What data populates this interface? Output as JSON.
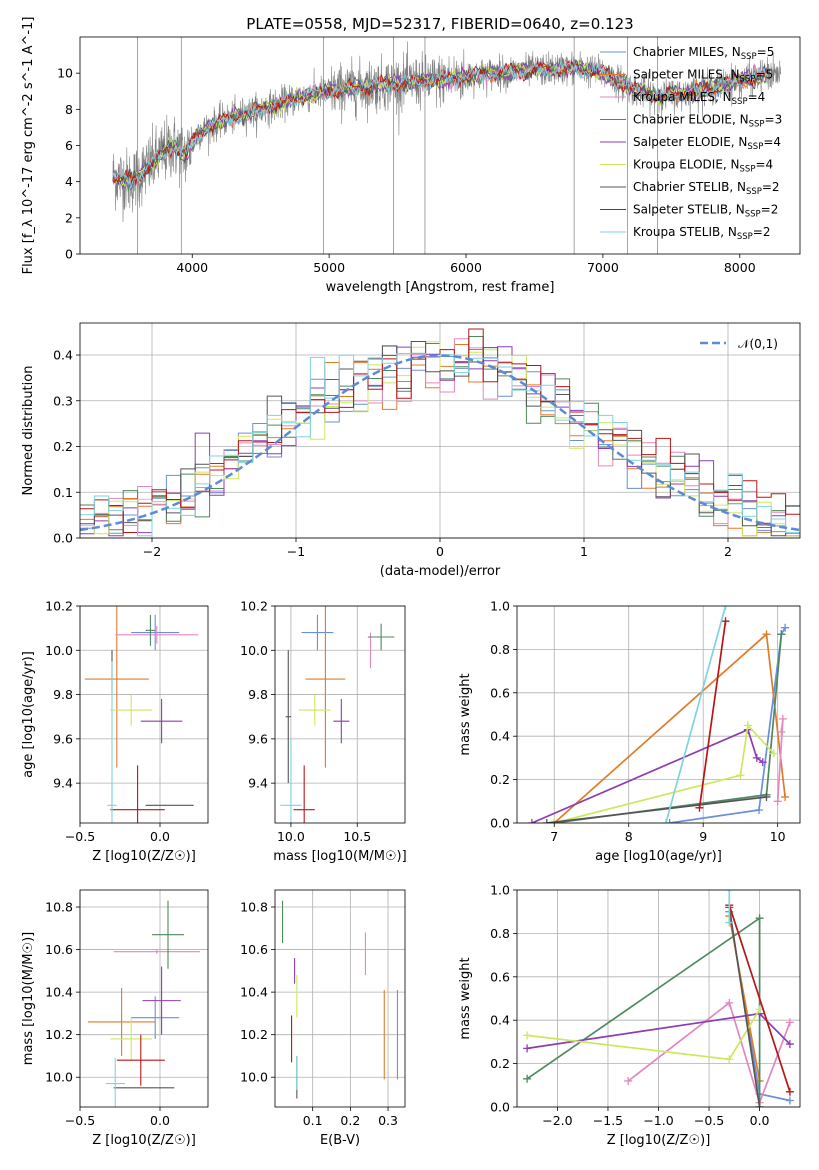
{
  "title": "PLATE=0558, MJD=52317, FIBERID=0640, z=0.123",
  "colors": {
    "chabrier_miles": "#6a8fdc",
    "salpeter_miles": "#e07b2a",
    "kroupa_miles": "#e487c0",
    "chabrier_elodie": "#4d8a5e",
    "salpeter_elodie": "#8e3cb3",
    "kroupa_elodie": "#cde85b",
    "chabrier_stelib": "#555555",
    "salpeter_stelib": "#b81616",
    "kroupa_stelib": "#7fd3e0",
    "observed": "#808080",
    "gaussian": "#5b8bd8"
  },
  "chart_data": [
    {
      "type": "line",
      "name": "spectrum",
      "xlabel": "wavelength [Angstrom, rest frame]",
      "ylabel": "Flux [f_λ 10^-17 erg cm^-2 s^-1 A^-1]",
      "xlim": [
        3180,
        8440
      ],
      "ylim": [
        0,
        12
      ],
      "xticks": [
        4000,
        5000,
        6000,
        7000,
        8000
      ],
      "yticks": [
        0,
        2,
        4,
        6,
        8,
        10
      ],
      "grid": false,
      "legend_position": "top-right",
      "legend": [
        {
          "key": "chabrier_miles",
          "label": "Chabrier MILES, N",
          "sub": "SSP",
          "suffix": "=5"
        },
        {
          "key": "salpeter_miles",
          "label": "Salpeter MILES, N",
          "sub": "SSP",
          "suffix": "=5"
        },
        {
          "key": "kroupa_miles",
          "label": "Kroupa MILES, N",
          "sub": "SSP",
          "suffix": "=4"
        },
        {
          "key": "chabrier_elodie",
          "label": "Chabrier ELODIE, N",
          "sub": "SSP",
          "suffix": "=3"
        },
        {
          "key": "salpeter_elodie",
          "label": "Salpeter ELODIE, N",
          "sub": "SSP",
          "suffix": "=4"
        },
        {
          "key": "kroupa_elodie",
          "label": "Kroupa ELODIE, N",
          "sub": "SSP",
          "suffix": "=4"
        },
        {
          "key": "chabrier_stelib",
          "label": "Chabrier STELIB, N",
          "sub": "SSP",
          "suffix": "=2"
        },
        {
          "key": "salpeter_stelib",
          "label": "Salpeter STELIB, N",
          "sub": "SSP",
          "suffix": "=2"
        },
        {
          "key": "kroupa_stelib",
          "label": "Kroupa STELIB, N",
          "sub": "SSP",
          "suffix": "=2"
        }
      ],
      "continuum": {
        "x": [
          3420,
          3550,
          3650,
          3750,
          3850,
          3950,
          4050,
          4200,
          4400,
          4600,
          4800,
          5000,
          5200,
          5400,
          5600,
          5800,
          6000,
          6200,
          6400,
          6600,
          6800,
          7000,
          7200,
          7400,
          7600,
          7800,
          8000,
          8200
        ],
        "y": [
          4.3,
          4.0,
          4.6,
          5.3,
          6.0,
          5.5,
          6.7,
          7.3,
          7.8,
          8.2,
          8.7,
          9.0,
          9.2,
          9.4,
          9.5,
          9.6,
          9.8,
          10.0,
          10.1,
          10.2,
          10.3,
          10.0,
          9.2,
          8.7,
          8.9,
          9.2,
          9.6,
          9.9
        ]
      },
      "observed_range": [
        3420,
        8300
      ]
    },
    {
      "type": "bar",
      "name": "residual-histogram",
      "xlabel": "(data-model)/error",
      "ylabel": "Normed distribution",
      "xlim": [
        -2.5,
        2.5
      ],
      "ylim": [
        0,
        0.47
      ],
      "xticks": [
        -2,
        -1,
        0,
        1,
        2
      ],
      "yticks": [
        0.0,
        0.1,
        0.2,
        0.3,
        0.4
      ],
      "grid": true,
      "legend_position": "top-right",
      "reference_label": "𝒩(0,1)",
      "bin_width": 0.1,
      "reference_curve": "normal(0,1)"
    },
    {
      "type": "scatter",
      "name": "age-vs-Z",
      "xlabel": "Z [log10(Z/Z☉)]",
      "ylabel": "age [log10(age/yr)]",
      "xlim": [
        -0.5,
        0.3
      ],
      "ylim": [
        9.22,
        10.2
      ],
      "xticks": [
        -0.5,
        0.0
      ],
      "yticks": [
        9.4,
        9.6,
        9.8,
        10.0,
        10.2
      ],
      "grid": true,
      "points": [
        {
          "key": "chabrier_miles",
          "x": -0.03,
          "y": 10.08,
          "xerr": 0.15,
          "yerr": 0.08
        },
        {
          "key": "salpeter_miles",
          "x": -0.27,
          "y": 9.87,
          "xerr": 0.2,
          "yerr": 0.4
        },
        {
          "key": "kroupa_miles",
          "x": -0.02,
          "y": 10.07,
          "xerr": 0.26,
          "yerr": 0.04
        },
        {
          "key": "chabrier_elodie",
          "x": -0.06,
          "y": 10.09,
          "xerr": 0.03,
          "yerr": 0.07
        },
        {
          "key": "salpeter_elodie",
          "x": 0.01,
          "y": 9.68,
          "xerr": 0.13,
          "yerr": 0.1
        },
        {
          "key": "kroupa_elodie",
          "x": -0.18,
          "y": 9.73,
          "xerr": 0.13,
          "yerr": 0.07
        },
        {
          "key": "chabrier_stelib",
          "x": 0.06,
          "y": 9.3,
          "xerr": 0.15,
          "yerr": 0.0
        },
        {
          "key": "salpeter_stelib",
          "x": -0.14,
          "y": 9.28,
          "xerr": 0.17,
          "yerr": 0.2
        },
        {
          "key": "kroupa_stelib",
          "x": -0.3,
          "y": 9.3,
          "xerr": 0.03,
          "yerr": 0.1
        },
        {
          "key": "chabrier_stelib",
          "x": -0.3,
          "y": 9.9,
          "xerr": 0.0,
          "yerr": 0.1
        },
        {
          "key": "kroupa_stelib",
          "x": -0.3,
          "y": 9.6,
          "xerr": 0.0,
          "yerr": 0.35
        }
      ]
    },
    {
      "type": "scatter",
      "name": "age-vs-mass",
      "xlabel": "mass [log10(M/M☉)]",
      "ylabel": "",
      "xlim": [
        9.88,
        10.86
      ],
      "ylim": [
        9.22,
        10.2
      ],
      "xticks": [
        10.0,
        10.5
      ],
      "yticks": [
        9.4,
        9.6,
        9.8,
        10.0,
        10.2
      ],
      "grid": true,
      "points": [
        {
          "key": "chabrier_miles",
          "x": 10.2,
          "y": 10.08,
          "xerr": 0.12,
          "yerr": 0.08
        },
        {
          "key": "salpeter_miles",
          "x": 10.26,
          "y": 9.87,
          "xerr": 0.15,
          "yerr": 0.4
        },
        {
          "key": "kroupa_miles",
          "x": 10.6,
          "y": 10.0,
          "xerr": 0.0,
          "yerr": 0.08
        },
        {
          "key": "chabrier_elodie",
          "x": 10.68,
          "y": 10.06,
          "xerr": 0.1,
          "yerr": 0.06
        },
        {
          "key": "salpeter_elodie",
          "x": 10.38,
          "y": 9.68,
          "xerr": 0.06,
          "yerr": 0.1
        },
        {
          "key": "kroupa_elodie",
          "x": 10.18,
          "y": 9.73,
          "xerr": 0.12,
          "yerr": 0.07
        },
        {
          "key": "chabrier_stelib",
          "x": 9.98,
          "y": 9.7,
          "xerr": 0.02,
          "yerr": 0.3
        },
        {
          "key": "salpeter_stelib",
          "x": 10.1,
          "y": 9.28,
          "xerr": 0.08,
          "yerr": 0.2
        },
        {
          "key": "kroupa_stelib",
          "x": 10.0,
          "y": 9.3,
          "xerr": 0.08,
          "yerr": 0.3
        }
      ]
    },
    {
      "type": "line",
      "name": "mass-weight-vs-age",
      "xlabel": "age [log10(age/yr)]",
      "ylabel": "mass weight",
      "xlim": [
        6.5,
        10.3
      ],
      "ylim": [
        0,
        1
      ],
      "xticks": [
        7,
        8,
        9,
        10
      ],
      "yticks": [
        0.0,
        0.2,
        0.4,
        0.6,
        0.8,
        1.0
      ],
      "grid": true,
      "series": [
        {
          "key": "chabrier_miles",
          "x": [
            8.55,
            9.75,
            10.05,
            10.1
          ],
          "y": [
            0.0,
            0.06,
            0.87,
            0.9
          ]
        },
        {
          "key": "salpeter_miles",
          "x": [
            7.0,
            9.85,
            10.1
          ],
          "y": [
            0.0,
            0.87,
            0.12
          ]
        },
        {
          "key": "kroupa_miles",
          "x": [
            10.0,
            10.07,
            10.05
          ],
          "y": [
            0.1,
            0.48,
            0.42
          ]
        },
        {
          "key": "chabrier_elodie",
          "x": [
            7.0,
            9.85,
            10.05
          ],
          "y": [
            0.0,
            0.13,
            0.87
          ]
        },
        {
          "key": "salpeter_elodie",
          "x": [
            6.7,
            9.6,
            9.72,
            9.8
          ],
          "y": [
            0.0,
            0.43,
            0.3,
            0.28
          ]
        },
        {
          "key": "kroupa_elodie",
          "x": [
            7.0,
            9.5,
            9.6,
            9.95
          ],
          "y": [
            0.0,
            0.22,
            0.45,
            0.32
          ]
        },
        {
          "key": "chabrier_stelib",
          "x": [
            6.9,
            9.85
          ],
          "y": [
            0.0,
            0.12
          ]
        },
        {
          "key": "salpeter_stelib",
          "x": [
            8.95,
            9.3
          ],
          "y": [
            0.07,
            0.93
          ]
        },
        {
          "key": "kroupa_stelib",
          "x": [
            8.5,
            9.3
          ],
          "y": [
            0.0,
            1.0
          ]
        }
      ]
    },
    {
      "type": "scatter",
      "name": "mass-vs-Z",
      "xlabel": "Z [log10(Z/Z☉)]",
      "ylabel": "mass [log10(M/M☉)]",
      "xlim": [
        -0.5,
        0.3
      ],
      "ylim": [
        9.86,
        10.88
      ],
      "xticks": [
        -0.5,
        0.0
      ],
      "yticks": [
        10.0,
        10.2,
        10.4,
        10.6,
        10.8
      ],
      "grid": true,
      "points": [
        {
          "key": "chabrier_miles",
          "x": -0.03,
          "y": 10.28,
          "xerr": 0.15,
          "yerr": 0.1
        },
        {
          "key": "salpeter_miles",
          "x": -0.24,
          "y": 10.26,
          "xerr": 0.21,
          "yerr": 0.16
        },
        {
          "key": "kroupa_miles",
          "x": -0.02,
          "y": 10.59,
          "xerr": 0.27,
          "yerr": 0.01
        },
        {
          "key": "chabrier_elodie",
          "x": 0.05,
          "y": 10.67,
          "xerr": 0.1,
          "yerr": 0.16
        },
        {
          "key": "salpeter_elodie",
          "x": 0.01,
          "y": 10.36,
          "xerr": 0.12,
          "yerr": 0.16
        },
        {
          "key": "kroupa_elodie",
          "x": -0.18,
          "y": 10.18,
          "xerr": 0.13,
          "yerr": 0.1
        },
        {
          "key": "chabrier_stelib",
          "x": -0.1,
          "y": 9.95,
          "xerr": 0.19,
          "yerr": 0.0
        },
        {
          "key": "salpeter_stelib",
          "x": -0.12,
          "y": 10.08,
          "xerr": 0.15,
          "yerr": 0.12
        },
        {
          "key": "kroupa_stelib",
          "x": -0.28,
          "y": 9.97,
          "xerr": 0.06,
          "yerr": 0.12
        }
      ]
    },
    {
      "type": "scatter",
      "name": "mass-vs-EBV",
      "xlabel": "E(B-V)",
      "ylabel": "",
      "xlim": [
        0.0,
        0.345
      ],
      "ylim": [
        9.86,
        10.88
      ],
      "xticks": [
        0.1,
        0.2,
        0.3
      ],
      "yticks": [
        10.0,
        10.2,
        10.4,
        10.6,
        10.8
      ],
      "grid": true,
      "points": [
        {
          "key": "chabrier_miles",
          "x": 0.325,
          "y": 10.2,
          "xerr": 0.0,
          "yerr": 0.21
        },
        {
          "key": "salpeter_miles",
          "x": 0.29,
          "y": 10.2,
          "xerr": 0.0,
          "yerr": 0.21
        },
        {
          "key": "kroupa_miles",
          "x": 0.24,
          "y": 10.58,
          "xerr": 0.0,
          "yerr": 0.1
        },
        {
          "key": "chabrier_elodie",
          "x": 0.02,
          "y": 10.73,
          "xerr": 0.0,
          "yerr": 0.1
        },
        {
          "key": "salpeter_elodie",
          "x": 0.052,
          "y": 10.5,
          "xerr": 0.0,
          "yerr": 0.06
        },
        {
          "key": "kroupa_elodie",
          "x": 0.058,
          "y": 10.38,
          "xerr": 0.0,
          "yerr": 0.1
        },
        {
          "key": "chabrier_stelib",
          "x": 0.058,
          "y": 10.0,
          "xerr": 0.0,
          "yerr": 0.1
        },
        {
          "key": "salpeter_stelib",
          "x": 0.044,
          "y": 10.18,
          "xerr": 0.0,
          "yerr": 0.11
        },
        {
          "key": "kroupa_stelib",
          "x": 0.058,
          "y": 10.02,
          "xerr": 0.0,
          "yerr": 0.08
        }
      ]
    },
    {
      "type": "line",
      "name": "mass-weight-vs-Z",
      "xlabel": "Z [log10(Z/Z☉)]",
      "ylabel": "mass weight",
      "xlim": [
        -2.4,
        0.4
      ],
      "ylim": [
        0,
        1
      ],
      "xticks": [
        -2.0,
        -1.5,
        -1.0,
        -0.5,
        0.0
      ],
      "yticks": [
        0.0,
        0.2,
        0.4,
        0.6,
        0.8,
        1.0
      ],
      "grid": true,
      "series": [
        {
          "key": "chabrier_miles",
          "x": [
            -0.3,
            0.0,
            0.3
          ],
          "y": [
            0.9,
            0.06,
            0.03
          ]
        },
        {
          "key": "salpeter_miles",
          "x": [
            -0.3,
            0.0
          ],
          "y": [
            0.88,
            0.12
          ]
        },
        {
          "key": "kroupa_miles",
          "x": [
            -1.3,
            -0.3,
            0.0,
            0.3
          ],
          "y": [
            0.12,
            0.48,
            0.02,
            0.39
          ]
        },
        {
          "key": "chabrier_elodie",
          "x": [
            -2.3,
            0.0,
            0.0
          ],
          "y": [
            0.13,
            0.87,
            0.0
          ]
        },
        {
          "key": "salpeter_elodie",
          "x": [
            -2.3,
            0.0,
            0.3
          ],
          "y": [
            0.27,
            0.43,
            0.29
          ]
        },
        {
          "key": "kroupa_elodie",
          "x": [
            -2.3,
            -0.3,
            0.0
          ],
          "y": [
            0.33,
            0.22,
            0.45
          ]
        },
        {
          "key": "chabrier_stelib",
          "x": [
            -0.3,
            0.0
          ],
          "y": [
            0.92,
            0.0
          ]
        },
        {
          "key": "salpeter_stelib",
          "x": [
            -0.3,
            0.3
          ],
          "y": [
            0.93,
            0.07
          ]
        },
        {
          "key": "kroupa_stelib",
          "x": [
            -0.3,
            -0.3
          ],
          "y": [
            1.0,
            0.85
          ]
        }
      ]
    }
  ]
}
